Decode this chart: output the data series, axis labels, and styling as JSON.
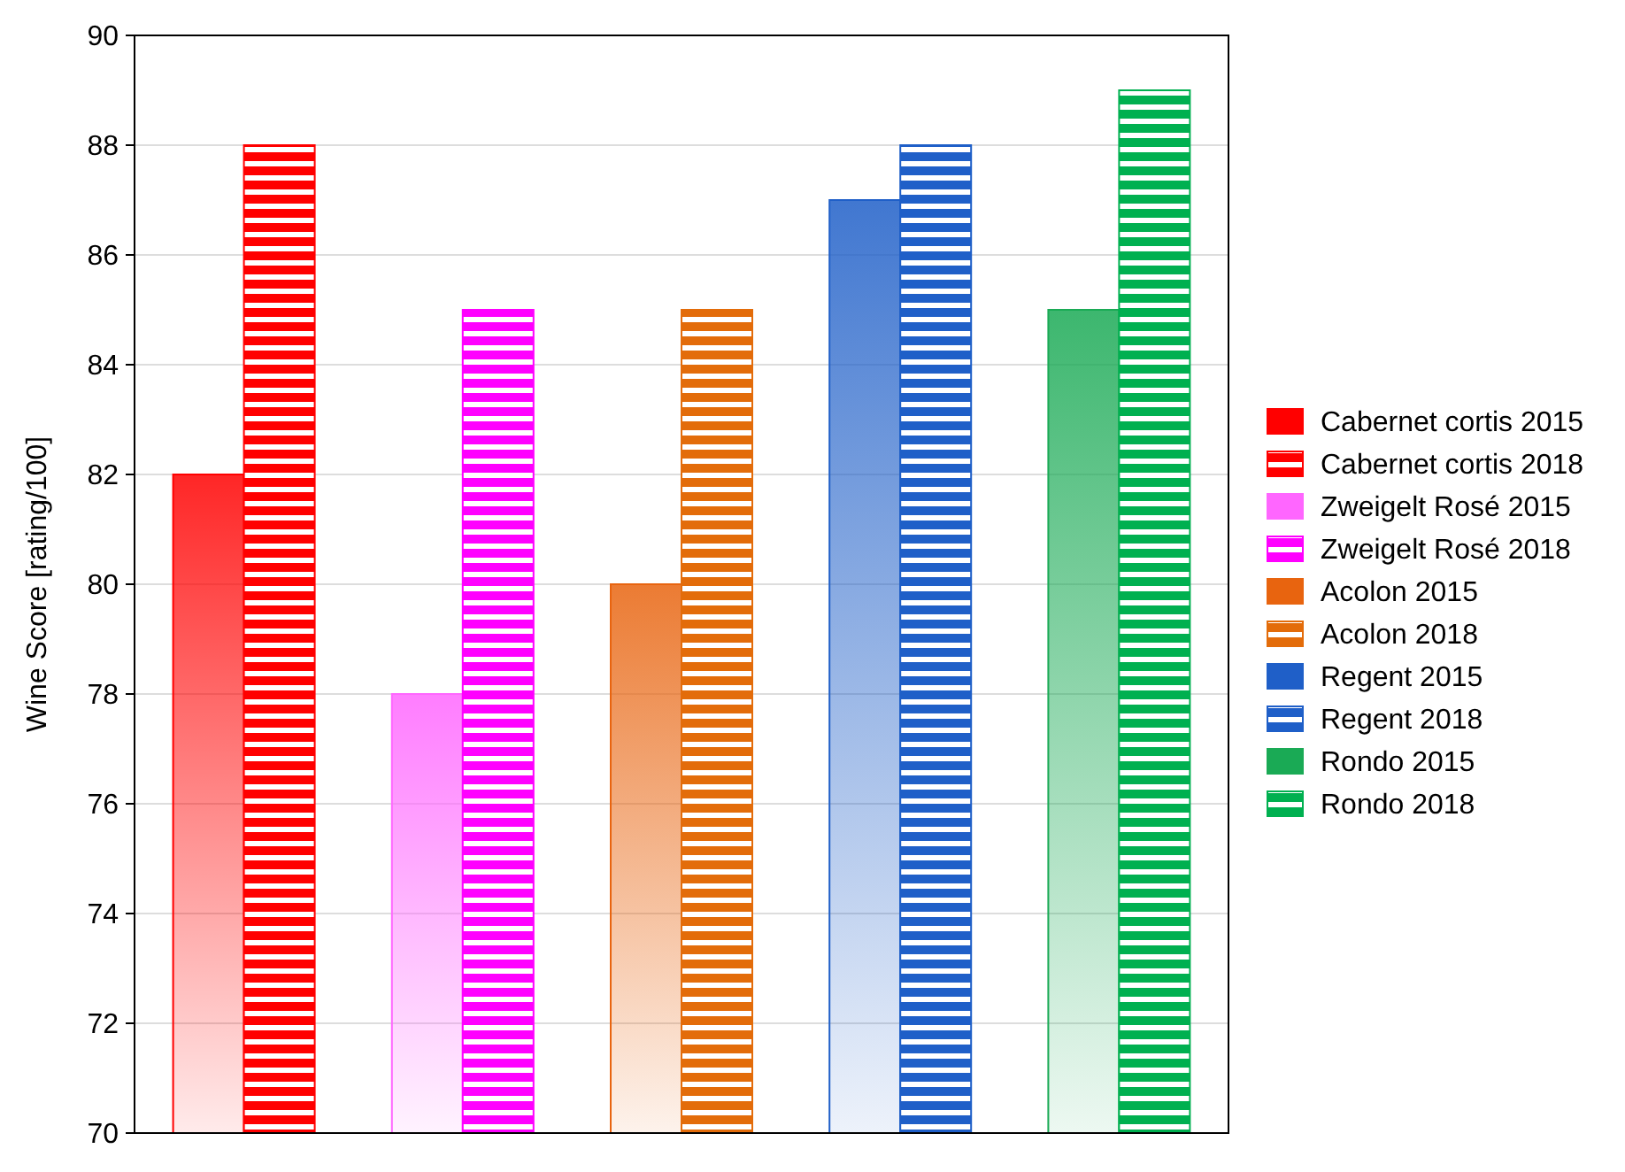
{
  "chart_data": {
    "type": "bar",
    "ylabel": "Wine Score [rating/100]",
    "categories": [
      null,
      null,
      null,
      null,
      null
    ],
    "ylim": [
      70,
      90
    ],
    "yticks": [
      70,
      72,
      74,
      76,
      78,
      80,
      82,
      84,
      86,
      88,
      90
    ],
    "grid": "y",
    "legend": "right",
    "series": [
      {
        "name": "Cabernet cortis 2015",
        "color": "#ff0000",
        "values": [
          82,
          null,
          null,
          null,
          null
        ]
      },
      {
        "name": "Cabernet cortis 2018",
        "color": "#ff0000",
        "values": [
          88,
          null,
          null,
          null,
          null
        ]
      },
      {
        "name": "Zweigelt Rosé 2015",
        "color": "#ff66ff",
        "values": [
          null,
          78,
          null,
          null,
          null
        ]
      },
      {
        "name": "Zweigelt Rosé 2018",
        "color": "#ff00ff",
        "values": [
          null,
          85,
          null,
          null,
          null
        ]
      },
      {
        "name": "Acolon 2015",
        "color": "#e8640f",
        "values": [
          null,
          null,
          80,
          null,
          null
        ]
      },
      {
        "name": "Acolon 2018",
        "color": "#e36c0a",
        "values": [
          null,
          null,
          85,
          null,
          null
        ]
      },
      {
        "name": "Regent 2015",
        "color": "#1f5fc8",
        "values": [
          null,
          null,
          null,
          87,
          null
        ]
      },
      {
        "name": "Regent 2018",
        "color": "#1f5fc8",
        "values": [
          null,
          null,
          null,
          88,
          null
        ]
      },
      {
        "name": "Rondo 2015",
        "color": "#1aaa55",
        "values": [
          null,
          null,
          null,
          null,
          85
        ]
      },
      {
        "name": "Rondo 2018",
        "color": "#00b050",
        "values": [
          null,
          null,
          null,
          null,
          89
        ]
      }
    ]
  }
}
